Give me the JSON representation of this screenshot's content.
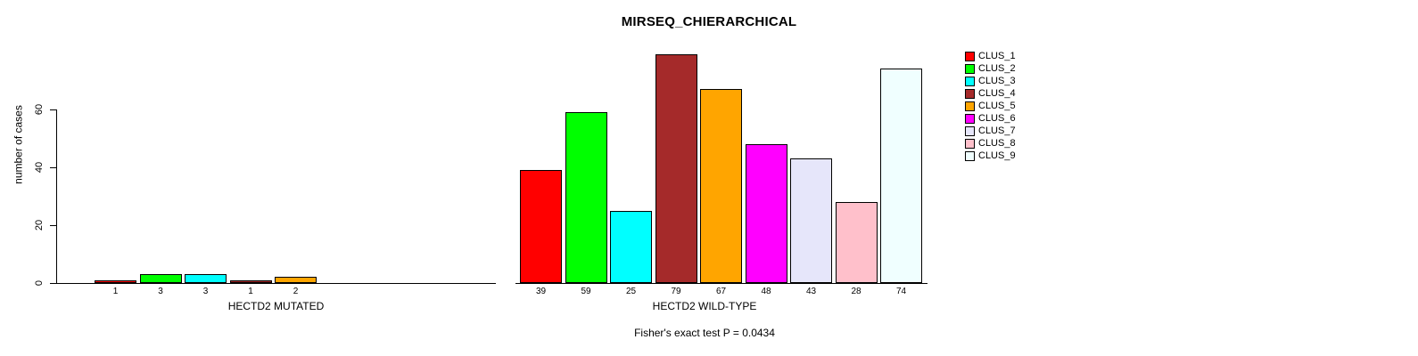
{
  "title": "MIRSEQ_CHIERARCHICAL",
  "chart_data": {
    "type": "bar",
    "title": "MIRSEQ_CHIERARCHICAL",
    "ylabel": "number of cases",
    "ylim": [
      0,
      80
    ],
    "yticks": [
      0,
      20,
      40,
      60
    ],
    "grid": false,
    "legend_position": "right",
    "legend": [
      {
        "label": "CLUS_1",
        "color": "#FF0000"
      },
      {
        "label": "CLUS_2",
        "color": "#00FF00"
      },
      {
        "label": "CLUS_3",
        "color": "#00FFFF"
      },
      {
        "label": "CLUS_4",
        "color": "#A52A2A"
      },
      {
        "label": "CLUS_5",
        "color": "#FFA500"
      },
      {
        "label": "CLUS_6",
        "color": "#FF00FF"
      },
      {
        "label": "CLUS_7",
        "color": "#E6E6FA"
      },
      {
        "label": "CLUS_8",
        "color": "#FFC0CB"
      },
      {
        "label": "CLUS_9",
        "color": "#F0FFFF"
      }
    ],
    "groups": [
      {
        "xlabel": "HECTD2 MUTATED",
        "values": [
          1,
          3,
          3,
          1,
          2,
          0,
          0,
          0,
          0
        ]
      },
      {
        "xlabel": "HECTD2 WILD-TYPE",
        "values": [
          39,
          59,
          25,
          79,
          67,
          48,
          43,
          28,
          74
        ]
      }
    ],
    "annotation": "Fisher's exact test P = 0.0434"
  }
}
